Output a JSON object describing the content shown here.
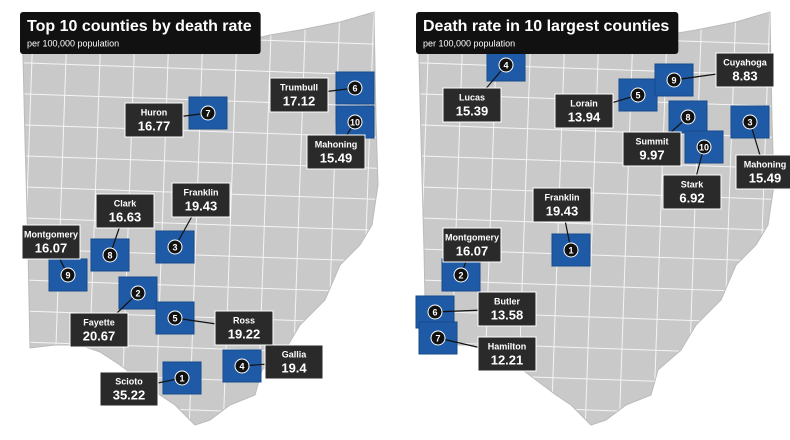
{
  "maps": [
    {
      "title": "Top 10 counties by death rate",
      "subtitle": "per 100,000 population",
      "counties": [
        {
          "rank": 1,
          "name": "Scioto",
          "rate": 35.22
        },
        {
          "rank": 2,
          "name": "Fayette",
          "rate": 20.67
        },
        {
          "rank": 3,
          "name": "Franklin",
          "rate": 19.43
        },
        {
          "rank": 4,
          "name": "Gallia",
          "rate": 19.4
        },
        {
          "rank": 5,
          "name": "Ross",
          "rate": 19.22
        },
        {
          "rank": 6,
          "name": "Trumbull",
          "rate": 17.12
        },
        {
          "rank": 7,
          "name": "Huron",
          "rate": 16.77
        },
        {
          "rank": 8,
          "name": "Clark",
          "rate": 16.63
        },
        {
          "rank": 9,
          "name": "Montgomery",
          "rate": 16.07
        },
        {
          "rank": 10,
          "name": "Mahoning",
          "rate": 15.49
        }
      ]
    },
    {
      "title": "Death rate in 10 largest counties",
      "subtitle": "per 100,000 population",
      "counties": [
        {
          "rank": 1,
          "name": "Franklin",
          "rate": 19.43
        },
        {
          "rank": 2,
          "name": "Montgomery",
          "rate": 16.07
        },
        {
          "rank": 3,
          "name": "Mahoning",
          "rate": 15.49
        },
        {
          "rank": 4,
          "name": "Lucas",
          "rate": 15.39
        },
        {
          "rank": 5,
          "name": "Lorain",
          "rate": 13.94
        },
        {
          "rank": 6,
          "name": "Butler",
          "rate": 13.58
        },
        {
          "rank": 7,
          "name": "Hamilton",
          "rate": 12.21
        },
        {
          "rank": 8,
          "name": "Summit",
          "rate": 9.97
        },
        {
          "rank": 9,
          "name": "Cuyahoga",
          "rate": 8.83
        },
        {
          "rank": 10,
          "name": "Stark",
          "rate": 6.92
        }
      ]
    }
  ]
}
